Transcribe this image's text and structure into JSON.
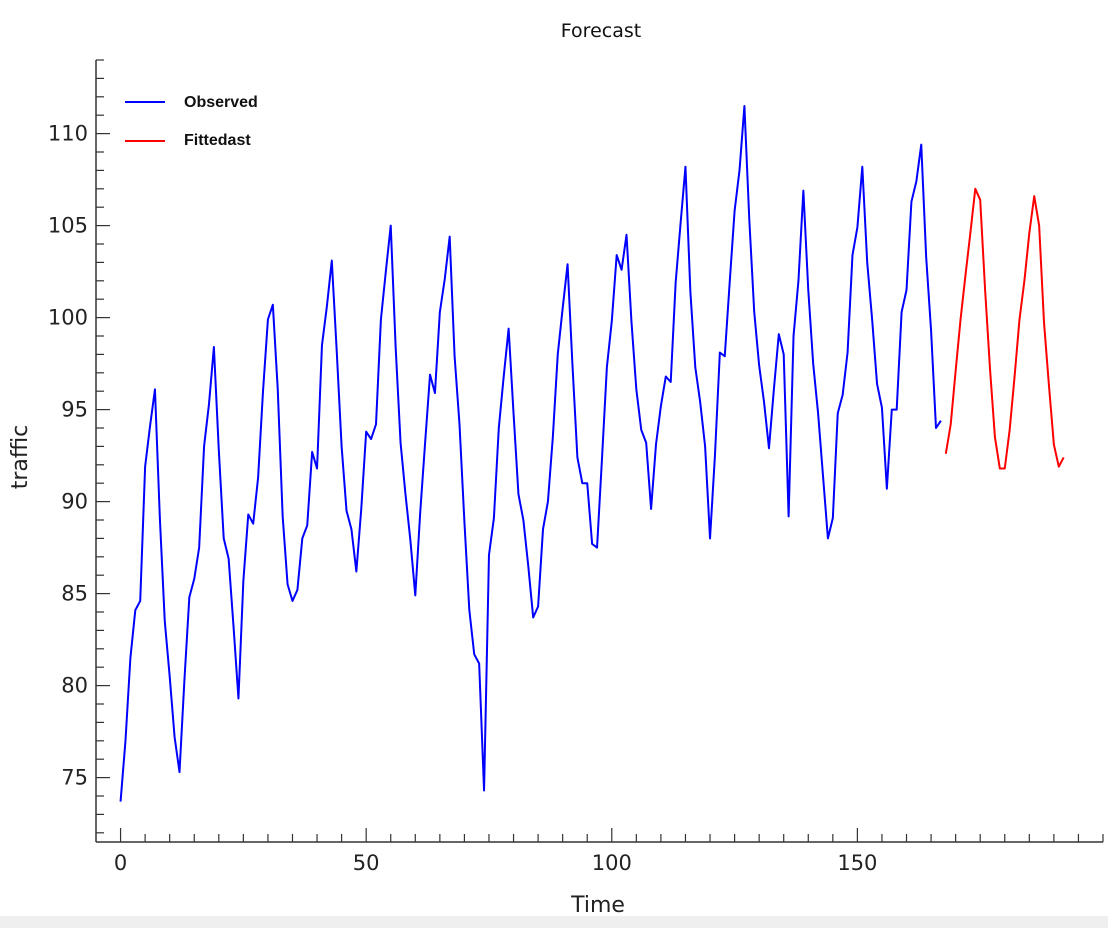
{
  "chart_data": {
    "type": "line",
    "title": "Forecast",
    "xlabel": "Time",
    "ylabel": "traffic",
    "xlim": [
      -5,
      200
    ],
    "ylim": [
      71.5,
      114
    ],
    "xticks": [
      0,
      50,
      100,
      150
    ],
    "yticks": [
      75,
      80,
      85,
      90,
      95,
      100,
      105,
      110
    ],
    "x_minor_step": 5,
    "y_minor_step": 1,
    "grid": false,
    "legend": {
      "placement": "top-left",
      "entries": [
        "Observed",
        "Fittedast"
      ]
    },
    "colors": {
      "observed": "#0000ff",
      "forecast": "#ff0000",
      "axis": "#333333"
    },
    "series": [
      {
        "name": "Observed",
        "color": "#0000ff",
        "x_start": 0,
        "values": [
          73.7,
          77.0,
          81.5,
          84.1,
          84.6,
          91.9,
          94.1,
          96.1,
          89.1,
          83.5,
          80.5,
          77.2,
          75.3,
          80.3,
          84.8,
          85.8,
          87.5,
          93.0,
          95.3,
          98.4,
          92.8,
          88.0,
          86.9,
          83.2,
          79.3,
          85.7,
          89.3,
          88.8,
          91.3,
          96.0,
          99.9,
          100.7,
          96.1,
          89.2,
          85.5,
          84.6,
          85.2,
          88.0,
          88.7,
          92.7,
          91.8,
          98.5,
          100.6,
          103.1,
          98.2,
          93.0,
          89.5,
          88.5,
          86.2,
          89.6,
          93.8,
          93.4,
          94.2,
          99.9,
          102.5,
          105.0,
          98.4,
          93.2,
          90.4,
          87.9,
          84.9,
          89.4,
          93.2,
          96.9,
          95.9,
          100.3,
          102.1,
          104.4,
          97.9,
          94.2,
          88.9,
          84.1,
          81.7,
          81.2,
          74.3,
          87.1,
          89.1,
          94.0,
          96.8,
          99.4,
          94.8,
          90.4,
          89.0,
          86.5,
          83.7,
          84.3,
          88.5,
          90.0,
          93.5,
          98.0,
          100.5,
          102.9,
          97.4,
          92.4,
          91.0,
          91.0,
          87.7,
          87.5,
          92.3,
          97.3,
          99.8,
          103.4,
          102.6,
          104.5,
          99.8,
          96.1,
          93.9,
          93.2,
          89.6,
          93.1,
          95.2,
          96.8,
          96.5,
          101.9,
          105.1,
          108.2,
          101.4,
          97.3,
          95.4,
          93.0,
          88.0,
          92.5,
          98.1,
          97.9,
          101.9,
          105.8,
          108.0,
          111.5,
          105.3,
          100.3,
          97.4,
          95.4,
          92.9,
          96.1,
          99.1,
          98.0,
          89.2,
          99.0,
          102.0,
          106.9,
          101.5,
          97.5,
          94.8,
          91.4,
          88.0,
          89.1,
          94.8,
          95.8,
          98.1,
          103.4,
          104.9,
          108.2,
          103.0,
          99.9,
          96.4,
          95.1,
          90.7,
          95.0,
          95.0,
          100.3,
          101.5,
          106.3,
          107.4,
          109.4,
          103.3,
          99.3,
          94.0,
          94.4
        ]
      },
      {
        "name": "Fittedast",
        "color": "#ff0000",
        "x_start": 168,
        "values": [
          92.6,
          94.2,
          97.1,
          99.9,
          102.3,
          104.6,
          107.0,
          106.4,
          101.5,
          97.2,
          93.5,
          91.8,
          91.8,
          93.9,
          96.8,
          99.9,
          102.0,
          104.6,
          106.6,
          105.0,
          99.7,
          96.3,
          93.1,
          91.9,
          92.4
        ]
      }
    ]
  }
}
